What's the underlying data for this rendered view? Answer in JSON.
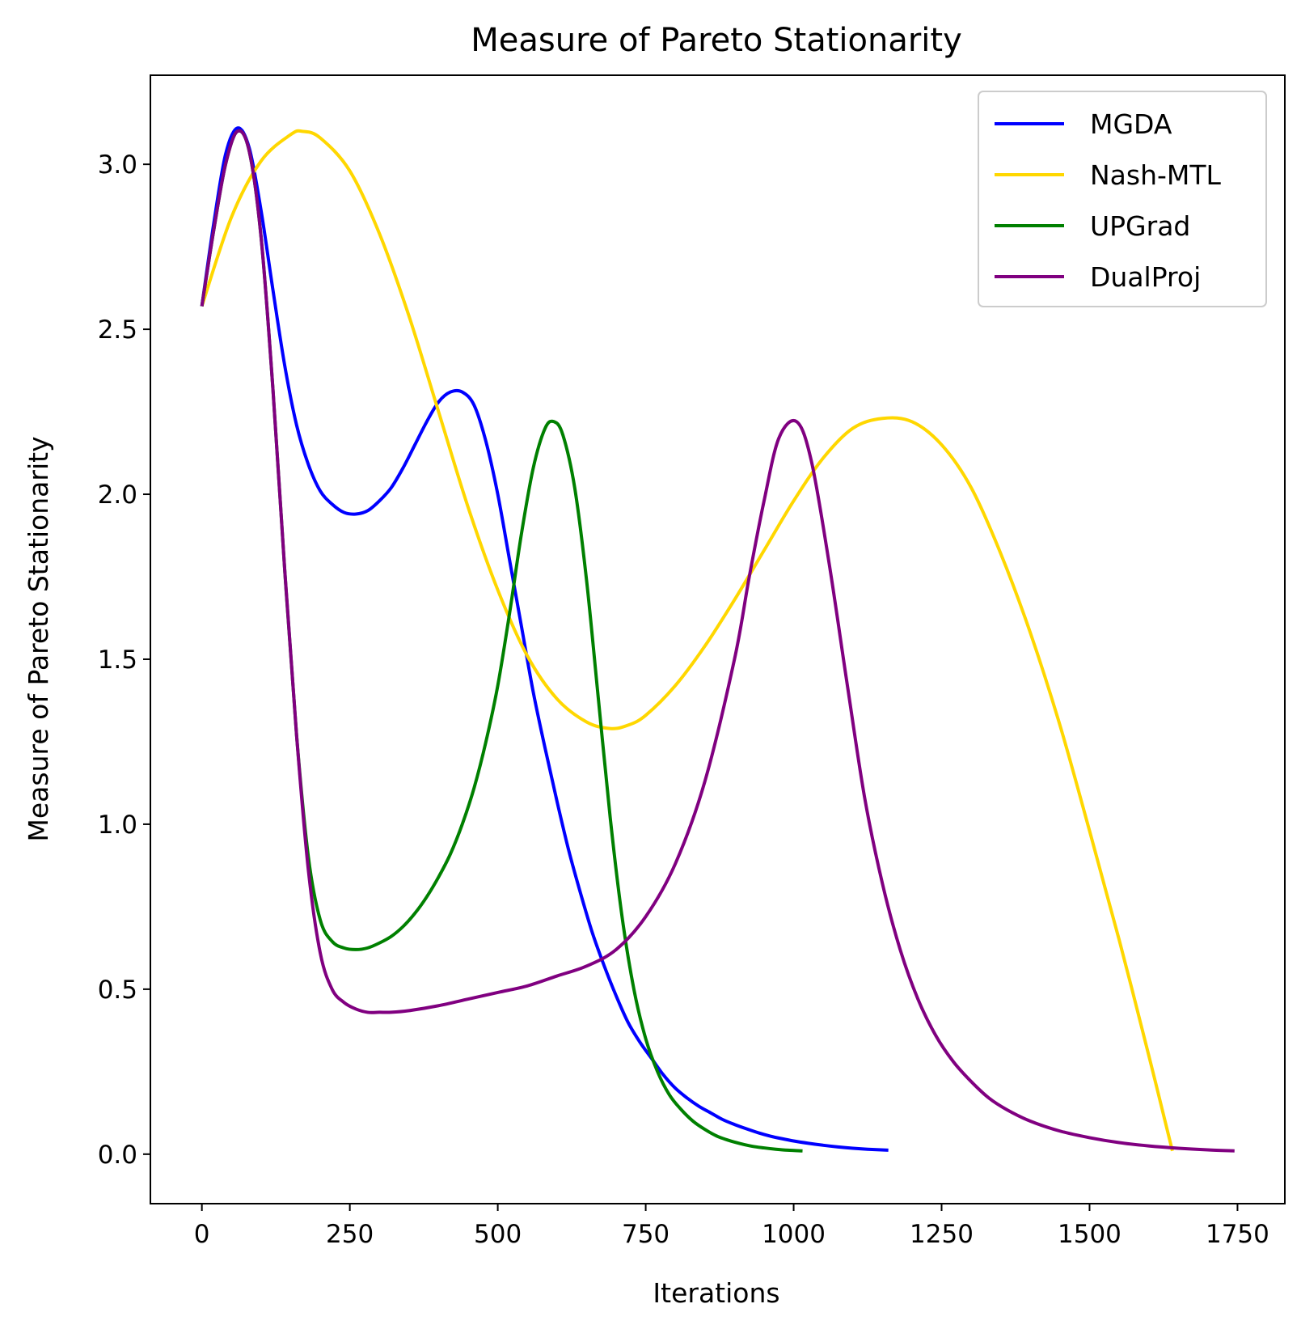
{
  "chart_data": {
    "type": "line",
    "title": "Measure of Pareto Stationarity",
    "xlabel": "Iterations",
    "ylabel": "Measure of Pareto Stationarity",
    "xlim": [
      -87,
      1830
    ],
    "ylim": [
      -0.15,
      3.27
    ],
    "xticks": [
      0,
      250,
      500,
      750,
      1000,
      1250,
      1500,
      1750
    ],
    "yticks": [
      0.0,
      0.5,
      1.0,
      1.5,
      2.0,
      2.5,
      3.0
    ],
    "xtick_labels": [
      "0",
      "250",
      "500",
      "750",
      "1000",
      "1250",
      "1500",
      "1750"
    ],
    "ytick_labels": [
      "0.0",
      "0.5",
      "1.0",
      "1.5",
      "2.0",
      "2.5",
      "3.0"
    ],
    "grid": false,
    "legend_position": "top-right",
    "series": [
      {
        "name": "MGDA",
        "color": "#0000ff",
        "x": [
          0,
          20,
          40,
          60,
          80,
          100,
          120,
          140,
          160,
          180,
          200,
          220,
          240,
          260,
          280,
          300,
          320,
          340,
          360,
          380,
          400,
          420,
          440,
          460,
          480,
          500,
          520,
          540,
          560,
          580,
          600,
          620,
          640,
          660,
          680,
          700,
          720,
          740,
          760,
          780,
          800,
          820,
          840,
          860,
          880,
          900,
          920,
          940,
          960,
          980,
          1000,
          1025,
          1050,
          1075,
          1100,
          1125,
          1160
        ],
        "y": [
          2.57,
          2.82,
          3.03,
          3.11,
          3.05,
          2.86,
          2.62,
          2.39,
          2.21,
          2.09,
          2.01,
          1.97,
          1.945,
          1.94,
          1.95,
          1.98,
          2.02,
          2.08,
          2.15,
          2.22,
          2.28,
          2.31,
          2.31,
          2.27,
          2.16,
          2.0,
          1.8,
          1.6,
          1.4,
          1.23,
          1.07,
          0.92,
          0.79,
          0.67,
          0.57,
          0.48,
          0.4,
          0.34,
          0.29,
          0.24,
          0.2,
          0.17,
          0.145,
          0.125,
          0.105,
          0.09,
          0.077,
          0.065,
          0.055,
          0.047,
          0.04,
          0.033,
          0.027,
          0.022,
          0.018,
          0.015,
          0.012
        ]
      },
      {
        "name": "Nash-MTL",
        "color": "#ffd700",
        "x": [
          0,
          50,
          100,
          150,
          170,
          200,
          250,
          300,
          350,
          400,
          450,
          500,
          550,
          600,
          650,
          690,
          720,
          750,
          800,
          850,
          900,
          950,
          1000,
          1050,
          1100,
          1150,
          1200,
          1250,
          1300,
          1350,
          1400,
          1450,
          1500,
          1550,
          1600,
          1640
        ],
        "y": [
          2.57,
          2.84,
          3.01,
          3.09,
          3.1,
          3.08,
          2.98,
          2.79,
          2.54,
          2.25,
          1.96,
          1.71,
          1.51,
          1.38,
          1.31,
          1.29,
          1.3,
          1.33,
          1.42,
          1.54,
          1.68,
          1.83,
          1.98,
          2.11,
          2.2,
          2.23,
          2.22,
          2.15,
          2.02,
          1.82,
          1.58,
          1.3,
          0.98,
          0.65,
          0.3,
          0.01
        ]
      },
      {
        "name": "UPGrad",
        "color": "#008000",
        "x": [
          0,
          20,
          40,
          60,
          80,
          100,
          120,
          140,
          160,
          180,
          200,
          220,
          240,
          260,
          280,
          300,
          320,
          340,
          360,
          380,
          400,
          420,
          440,
          460,
          480,
          500,
          520,
          540,
          560,
          580,
          595,
          610,
          630,
          650,
          670,
          690,
          710,
          730,
          750,
          770,
          790,
          810,
          830,
          850,
          870,
          890,
          910,
          930,
          950,
          970,
          990,
          1015
        ],
        "y": [
          2.57,
          2.8,
          3.0,
          3.1,
          3.04,
          2.78,
          2.32,
          1.77,
          1.27,
          0.9,
          0.71,
          0.645,
          0.625,
          0.62,
          0.625,
          0.64,
          0.66,
          0.69,
          0.73,
          0.78,
          0.84,
          0.91,
          1.0,
          1.11,
          1.25,
          1.42,
          1.64,
          1.88,
          2.08,
          2.2,
          2.22,
          2.18,
          2.02,
          1.74,
          1.38,
          1.02,
          0.72,
          0.5,
          0.35,
          0.25,
          0.18,
          0.135,
          0.1,
          0.075,
          0.055,
          0.042,
          0.032,
          0.024,
          0.019,
          0.015,
          0.012,
          0.01
        ]
      },
      {
        "name": "DualProj",
        "color": "#800080",
        "x": [
          0,
          20,
          40,
          60,
          80,
          100,
          120,
          140,
          160,
          180,
          200,
          220,
          240,
          260,
          280,
          300,
          320,
          350,
          400,
          450,
          500,
          550,
          600,
          650,
          700,
          750,
          800,
          850,
          900,
          925,
          950,
          975,
          1005,
          1030,
          1060,
          1090,
          1120,
          1150,
          1180,
          1210,
          1240,
          1270,
          1300,
          1330,
          1360,
          1400,
          1450,
          1500,
          1550,
          1600,
          1650,
          1700,
          1745
        ],
        "y": [
          2.57,
          2.8,
          3.0,
          3.1,
          3.04,
          2.78,
          2.32,
          1.77,
          1.27,
          0.86,
          0.61,
          0.5,
          0.46,
          0.44,
          0.43,
          0.43,
          0.43,
          0.435,
          0.45,
          0.47,
          0.49,
          0.51,
          0.54,
          0.57,
          0.62,
          0.72,
          0.88,
          1.13,
          1.5,
          1.75,
          1.98,
          2.17,
          2.22,
          2.1,
          1.79,
          1.43,
          1.08,
          0.82,
          0.62,
          0.47,
          0.36,
          0.28,
          0.22,
          0.17,
          0.135,
          0.1,
          0.07,
          0.05,
          0.035,
          0.025,
          0.018,
          0.013,
          0.01
        ]
      }
    ]
  }
}
